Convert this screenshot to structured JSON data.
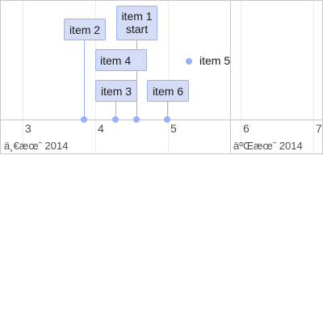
{
  "axis": {
    "ticks": [
      {
        "label": "3"
      },
      {
        "label": "4"
      },
      {
        "label": "5"
      },
      {
        "label": "6"
      },
      {
        "label": "7"
      }
    ],
    "major_labels": [
      {
        "label": "ä¸€æœˆ 2014"
      },
      {
        "label": "äºŒæœˆ 2014"
      }
    ]
  },
  "items": [
    {
      "id": "item1",
      "label_line1": "item 1",
      "label_line2": "start"
    },
    {
      "id": "item2",
      "label": "item 2"
    },
    {
      "id": "item3",
      "label": "item 3"
    },
    {
      "id": "item4",
      "label": "item 4"
    },
    {
      "id": "item5",
      "label": "item 5"
    },
    {
      "id": "item6",
      "label": "item 6"
    }
  ],
  "colors": {
    "item_fill": "#d5ddf6",
    "item_border": "#97b0f8",
    "grid_major": "#c8c8c8",
    "grid_minor": "#ececec"
  }
}
